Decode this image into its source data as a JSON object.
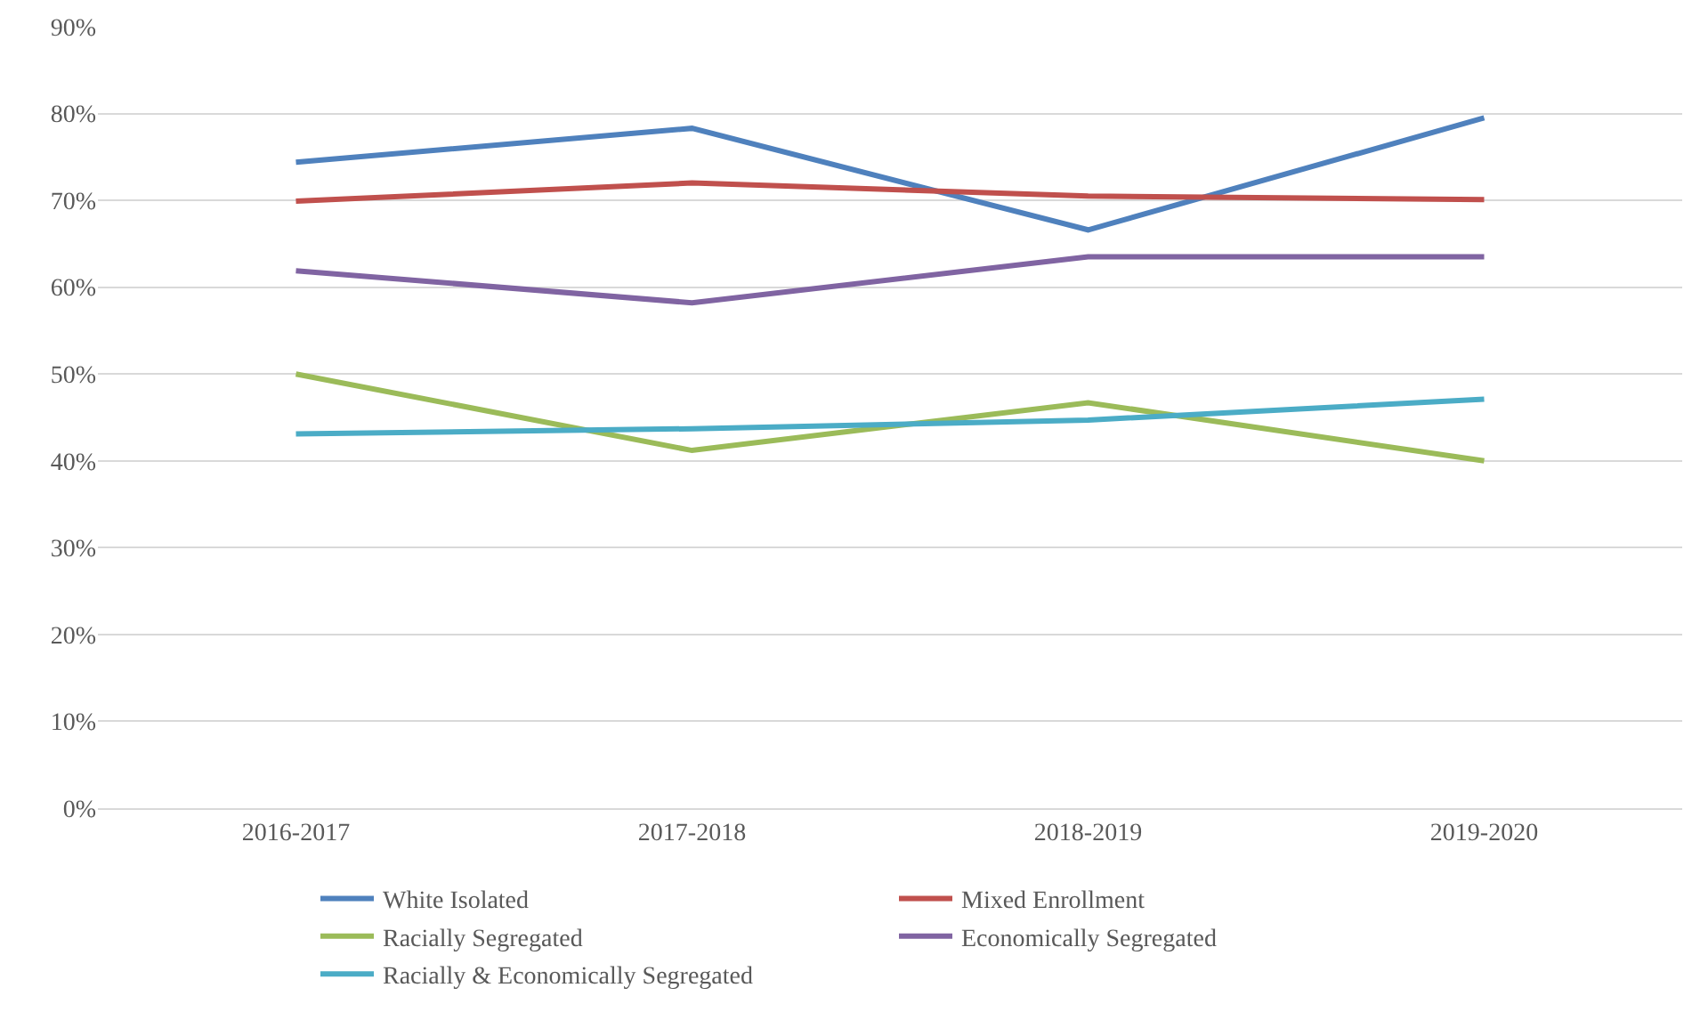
{
  "chart_data": {
    "type": "line",
    "categories": [
      "2016-2017",
      "2017-2018",
      "2018-2019",
      "2019-2020"
    ],
    "series": [
      {
        "name": "White Isolated",
        "color": "#4f81bd",
        "values": [
          74.4,
          78.3,
          66.6,
          79.5
        ]
      },
      {
        "name": "Mixed Enrollment",
        "color": "#c0504d",
        "values": [
          69.9,
          72.0,
          70.5,
          70.1
        ]
      },
      {
        "name": "Racially Segregated",
        "color": "#9bbb59",
        "values": [
          50.0,
          41.2,
          46.7,
          40.0
        ]
      },
      {
        "name": "Economically Segregated",
        "color": "#8064a2",
        "values": [
          61.9,
          58.2,
          63.5,
          63.5
        ]
      },
      {
        "name": "Racially & Economically Segregated",
        "color": "#4bacc6",
        "values": [
          43.1,
          43.7,
          44.7,
          47.1
        ]
      }
    ],
    "ylim": [
      0,
      90
    ],
    "yticks": [
      {
        "value": 0,
        "label": "0%"
      },
      {
        "value": 10,
        "label": "10%"
      },
      {
        "value": 20,
        "label": "20%"
      },
      {
        "value": 30,
        "label": "30%"
      },
      {
        "value": 40,
        "label": "40%"
      },
      {
        "value": 50,
        "label": "50%"
      },
      {
        "value": 60,
        "label": "60%"
      },
      {
        "value": 70,
        "label": "70%"
      },
      {
        "value": 80,
        "label": "80%"
      },
      {
        "value": 90,
        "label": "90%"
      }
    ],
    "grid": "y",
    "legend": "bottom",
    "marker": "none",
    "line_style": "solid"
  }
}
